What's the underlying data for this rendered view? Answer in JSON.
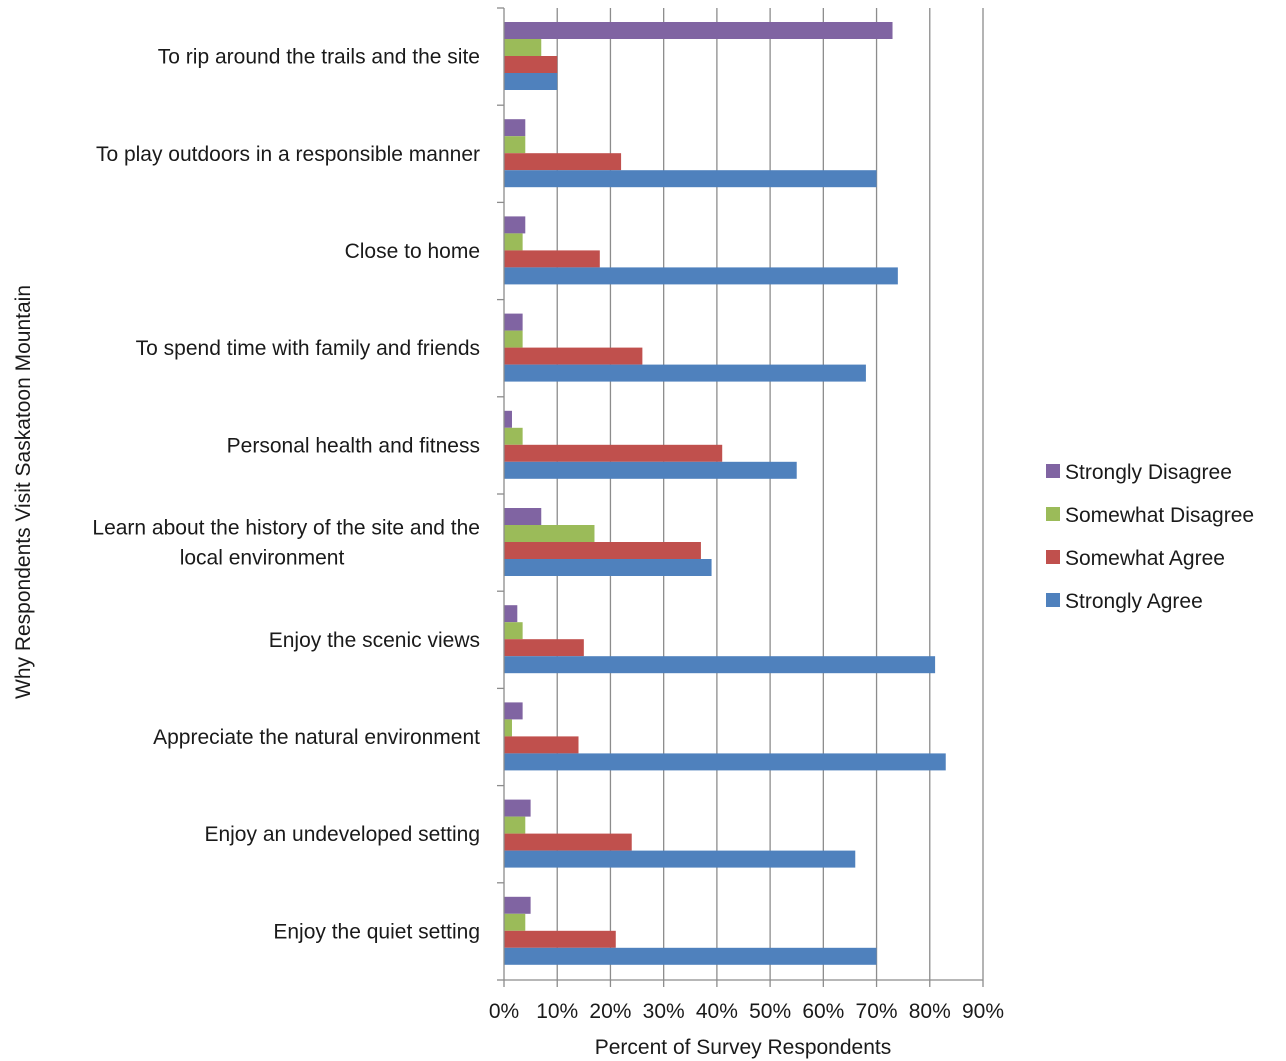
{
  "chart_data": {
    "type": "bar",
    "orientation": "horizontal",
    "title": "",
    "xlabel": "Percent of Survey Respondents",
    "ylabel": "Why Respondents Visit Saskatoon Mountain",
    "xlim": [
      0,
      90
    ],
    "xticks": [
      "0%",
      "10%",
      "20%",
      "30%",
      "40%",
      "50%",
      "60%",
      "70%",
      "80%",
      "90%"
    ],
    "grid": "vertical",
    "legend_position": "right",
    "categories": [
      [
        "To rip around the trails and the site"
      ],
      [
        "To play outdoors  in a responsible  manner"
      ],
      [
        "Close to home"
      ],
      [
        "To spend time with family and friends"
      ],
      [
        "Personal health and fitness"
      ],
      [
        "Learn about  the history of the site and the",
        "local environment"
      ],
      [
        "Enjoy the scenic views"
      ],
      [
        "Appreciate the natural environment"
      ],
      [
        "Enjoy an undeveloped  setting"
      ],
      [
        "Enjoy the quiet setting"
      ]
    ],
    "series": [
      {
        "name": "Strongly  Disagree",
        "color": "#8064a2",
        "values": [
          73,
          4,
          4,
          3.5,
          1.5,
          7,
          2.5,
          3.5,
          5,
          5
        ]
      },
      {
        "name": "Somewhat Disagree",
        "color": "#9bbb59",
        "values": [
          7,
          4,
          3.5,
          3.5,
          3.5,
          17,
          3.5,
          1.5,
          4,
          4
        ]
      },
      {
        "name": "Somewhat Agree",
        "color": "#c0504d",
        "values": [
          10,
          22,
          18,
          26,
          41,
          37,
          15,
          14,
          24,
          21
        ]
      },
      {
        "name": "Strongly  Agree",
        "color": "#4f81bd",
        "values": [
          10,
          70,
          74,
          68,
          55,
          39,
          81,
          83,
          66,
          70
        ]
      }
    ]
  }
}
